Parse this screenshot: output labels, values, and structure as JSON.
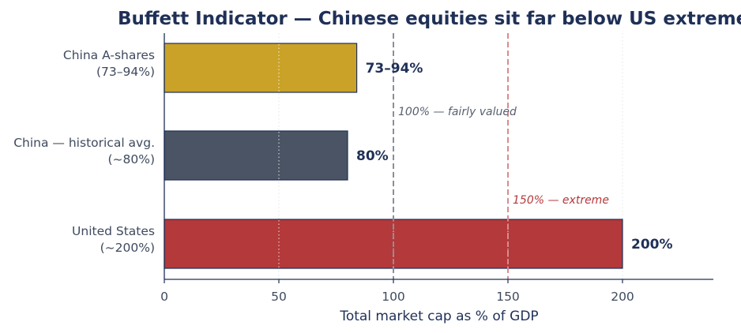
{
  "chart_data": {
    "type": "bar",
    "orientation": "horizontal",
    "title": "Buffett Indicator — Chinese equities sit far below US extremes",
    "xlabel": "Total market cap as % of GDP",
    "ylabel": "",
    "xlim": [
      0,
      240
    ],
    "xticks": [
      0,
      50,
      100,
      150,
      200
    ],
    "grid": "vertical dotted",
    "categories": [
      [
        "China A-shares",
        "(73–94%)"
      ],
      [
        "China — historical avg.",
        "(~80%)"
      ],
      [
        "United States",
        "(~200%)"
      ]
    ],
    "values": [
      84,
      80,
      200
    ],
    "data_labels": [
      "73–94%",
      "80%",
      "200%"
    ],
    "colors": [
      "#c9a227",
      "#4a5464",
      "#b4393a"
    ],
    "reference_lines": [
      {
        "x": 100,
        "label": "100% — fairly valued",
        "color": "#8a8f99"
      },
      {
        "x": 150,
        "label": "150% — extreme",
        "color": "#d98b8c",
        "text_color": "#b4393a"
      }
    ]
  }
}
